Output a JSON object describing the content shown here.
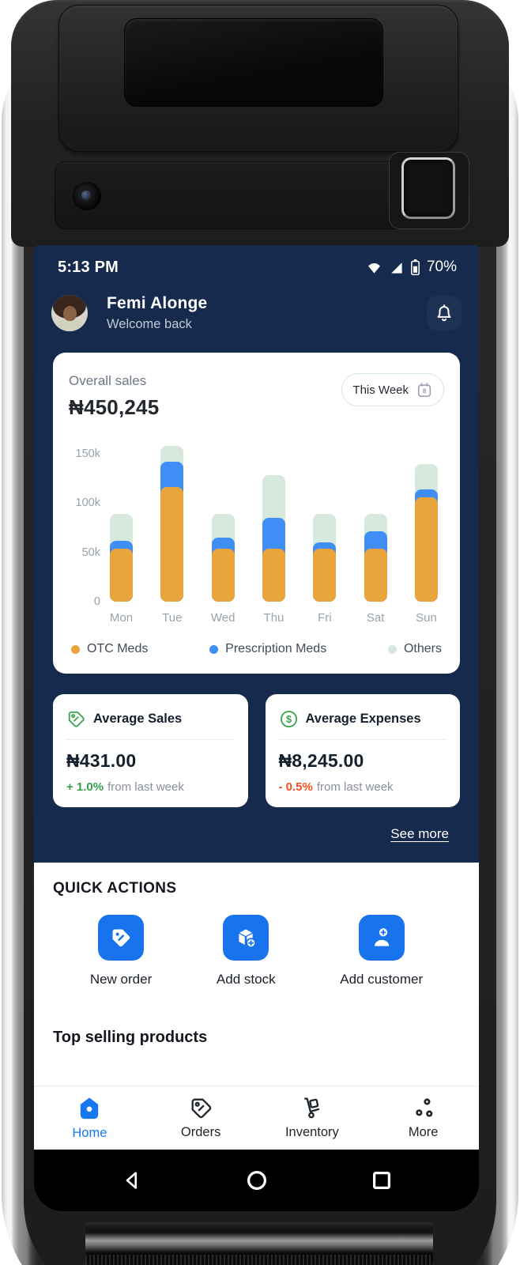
{
  "status_bar": {
    "time": "5:13 PM",
    "battery_percent": "70%"
  },
  "header": {
    "name": "Femi Alonge",
    "subtitle": "Welcome back"
  },
  "sales_card": {
    "title": "Overall sales",
    "amount": "₦450,245",
    "period_label": "This Week",
    "calendar_day": "8"
  },
  "chart_data": {
    "type": "bar",
    "stacked": true,
    "categories": [
      "Mon",
      "Tue",
      "Wed",
      "Thu",
      "Fri",
      "Sat",
      "Sun"
    ],
    "series": [
      {
        "name": "OTC Meds",
        "color": "#EAA43C",
        "values": [
          54,
          116,
          54,
          54,
          54,
          54,
          106
        ]
      },
      {
        "name": "Prescription Meds",
        "color": "#3F8EF5",
        "values": [
          8,
          26,
          11,
          31,
          6,
          17,
          8
        ]
      },
      {
        "name": "Others",
        "color": "#D7E8DC",
        "values": [
          27,
          16,
          24,
          43,
          29,
          18,
          25
        ]
      }
    ],
    "unit": "k (₦ thousands)",
    "yticks": [
      {
        "label": "0",
        "value": 0
      },
      {
        "label": "50k",
        "value": 50
      },
      {
        "label": "100k",
        "value": 100
      },
      {
        "label": "150k",
        "value": 150
      }
    ],
    "ylim": [
      0,
      160
    ],
    "legend_position": "bottom",
    "grid": false
  },
  "stats": [
    {
      "title": "Average Sales",
      "value": "₦431.00",
      "delta": "+ 1.0%",
      "delta_color": "#37A04C",
      "suffix": "from last week"
    },
    {
      "title": "Average Expenses",
      "value": "₦8,245.00",
      "delta": "- 0.5%",
      "delta_color": "#F4501E",
      "suffix": "from last week"
    }
  ],
  "see_more": "See more",
  "quick_actions": {
    "heading": "QUICK ACTIONS",
    "items": [
      {
        "label": "New order"
      },
      {
        "label": "Add stock"
      },
      {
        "label": "Add customer"
      }
    ]
  },
  "next_section_heading": "Top selling products",
  "bottom_nav": {
    "active": "Home",
    "items": [
      {
        "label": "Home"
      },
      {
        "label": "Orders"
      },
      {
        "label": "Inventory"
      },
      {
        "label": "More"
      }
    ]
  },
  "colors": {
    "screen_bg": "#152A4C",
    "accent_blue": "#1774EE",
    "nav_active": "#1878F0",
    "positive": "#37A04C",
    "negative": "#F4501E",
    "pill_border": "#D3E8D6",
    "icon_green": "#3FA351"
  }
}
